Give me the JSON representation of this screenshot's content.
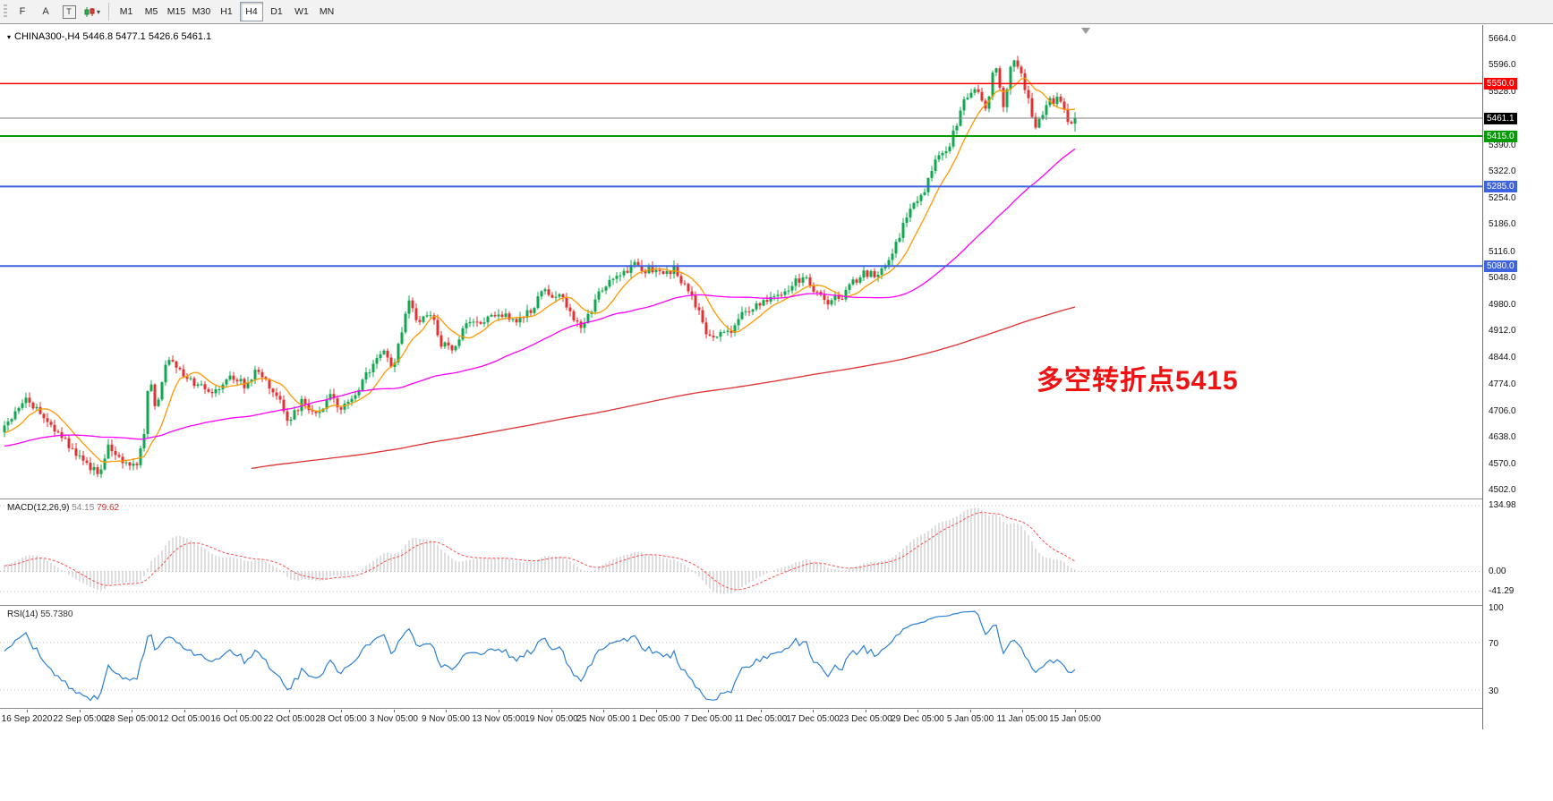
{
  "toolbar": {
    "icon_buttons": [
      {
        "name": "pointer-tool",
        "glyph": "F"
      },
      {
        "name": "text-label-tool",
        "glyph": "A"
      },
      {
        "name": "text-tool",
        "glyph": "T"
      }
    ],
    "chart_type_caret": "▾",
    "timeframes": [
      "M1",
      "M5",
      "M15",
      "M30",
      "H1",
      "H4",
      "D1",
      "W1",
      "MN"
    ],
    "active_timeframe": "H4"
  },
  "chart": {
    "symbol_marker": "▾",
    "symbol_info": "CHINA300-,H4 5446.8 5477.1 5426.6 5461.1",
    "annotation": "多空转折点5415",
    "colors": {
      "up": "#0fa84e",
      "down": "#e03232",
      "ma_fast": "#ff9900",
      "ma_mid": "#ff00ff",
      "ma_slow": "#e03030",
      "current": "#808080",
      "macd_hist": "#bdbdbd",
      "macd_signal": "#ff4d4d",
      "rsi_line": "#2a7fd4"
    },
    "levels": [
      {
        "label": "5550.0",
        "price": 5550.0,
        "color": "#ff0000",
        "width": 1.5
      },
      {
        "label": "5415.0",
        "price": 5415.0,
        "color": "#009b00",
        "width": 2
      },
      {
        "label": "5285.0",
        "price": 5285.0,
        "color": "#3e63de",
        "width": 2
      },
      {
        "label": "5080.0",
        "price": 5080.0,
        "color": "#3e63de",
        "width": 2
      }
    ],
    "price_marker": {
      "label": "5461.1",
      "price": 5461.1,
      "bg": "#000000"
    },
    "y_ticks": [
      "5664.0",
      "5596.0",
      "5528.0",
      "5390.0",
      "5322.0",
      "5254.0",
      "5186.0",
      "5116.0",
      "5048.0",
      "4980.0",
      "4912.0",
      "4844.0",
      "4774.0",
      "4706.0",
      "4638.0",
      "4570.0",
      "4502.0"
    ]
  },
  "macd": {
    "name": "MACD(12,26,9)",
    "value_main": "54.15",
    "value_signal": "79.62",
    "ticks": [
      {
        "label": "134.98",
        "value": 134.98
      },
      {
        "label": "0.00",
        "value": 0
      },
      {
        "label": "-41.29",
        "value": -41.29
      }
    ]
  },
  "rsi": {
    "name": "RSI(14)",
    "value": "55.7380",
    "ticks": [
      {
        "label": "100",
        "value": 100
      },
      {
        "label": "70",
        "value": 70
      },
      {
        "label": "30",
        "value": 30
      }
    ]
  },
  "time_axis": [
    "16 Sep 2020",
    "22 Sep 05:00",
    "28 Sep 05:00",
    "12 Oct 05:00",
    "16 Oct 05:00",
    "22 Oct 05:00",
    "28 Oct 05:00",
    "3 Nov 05:00",
    "9 Nov 05:00",
    "13 Nov 05:00",
    "19 Nov 05:00",
    "25 Nov 05:00",
    "1 Dec 05:00",
    "7 Dec 05:00",
    "11 Dec 05:00",
    "17 Dec 05:00",
    "23 Dec 05:00",
    "29 Dec 05:00",
    "5 Jan 05:00",
    "11 Jan 05:00",
    "15 Jan 05:00"
  ],
  "chart_data": {
    "type": "candlestick",
    "symbol": "CHINA300-",
    "timeframe": "H4",
    "price_axis_range": [
      4502.0,
      5664.0
    ],
    "current_bar": {
      "open": 5446.8,
      "high": 5477.1,
      "low": 5426.6,
      "close": 5461.1
    },
    "horizontal_levels": [
      5550.0,
      5415.0,
      5285.0,
      5080.0
    ],
    "visible_bars_rendered": 300,
    "close_path_anchors": [
      [
        0.0,
        4660
      ],
      [
        0.021,
        4745
      ],
      [
        0.033,
        4700
      ],
      [
        0.054,
        4645
      ],
      [
        0.075,
        4565
      ],
      [
        0.088,
        4548
      ],
      [
        0.098,
        4618
      ],
      [
        0.113,
        4575
      ],
      [
        0.123,
        4565
      ],
      [
        0.13,
        4640
      ],
      [
        0.135,
        4810
      ],
      [
        0.141,
        4700
      ],
      [
        0.152,
        4845
      ],
      [
        0.16,
        4822
      ],
      [
        0.175,
        4782
      ],
      [
        0.192,
        4752
      ],
      [
        0.208,
        4792
      ],
      [
        0.225,
        4775
      ],
      [
        0.235,
        4812
      ],
      [
        0.252,
        4762
      ],
      [
        0.265,
        4675
      ],
      [
        0.278,
        4730
      ],
      [
        0.292,
        4706
      ],
      [
        0.306,
        4746
      ],
      [
        0.315,
        4706
      ],
      [
        0.329,
        4760
      ],
      [
        0.342,
        4816
      ],
      [
        0.354,
        4872
      ],
      [
        0.363,
        4812
      ],
      [
        0.379,
        5005
      ],
      [
        0.385,
        4940
      ],
      [
        0.398,
        4956
      ],
      [
        0.408,
        4882
      ],
      [
        0.417,
        4862
      ],
      [
        0.429,
        4920
      ],
      [
        0.446,
        4936
      ],
      [
        0.463,
        4962
      ],
      [
        0.483,
        4936
      ],
      [
        0.504,
        5016
      ],
      [
        0.521,
        4996
      ],
      [
        0.538,
        4916
      ],
      [
        0.554,
        5000
      ],
      [
        0.567,
        5052
      ],
      [
        0.588,
        5082
      ],
      [
        0.608,
        5062
      ],
      [
        0.625,
        5072
      ],
      [
        0.642,
        5002
      ],
      [
        0.658,
        4896
      ],
      [
        0.675,
        4902
      ],
      [
        0.692,
        4962
      ],
      [
        0.708,
        4986
      ],
      [
        0.725,
        5012
      ],
      [
        0.746,
        5052
      ],
      [
        0.767,
        4986
      ],
      [
        0.783,
        5002
      ],
      [
        0.8,
        5062
      ],
      [
        0.817,
        5052
      ],
      [
        0.833,
        5142
      ],
      [
        0.846,
        5226
      ],
      [
        0.858,
        5262
      ],
      [
        0.871,
        5362
      ],
      [
        0.883,
        5396
      ],
      [
        0.896,
        5502
      ],
      [
        0.908,
        5542
      ],
      [
        0.917,
        5472
      ],
      [
        0.925,
        5602
      ],
      [
        0.933,
        5482
      ],
      [
        0.942,
        5630
      ],
      [
        0.954,
        5532
      ],
      [
        0.963,
        5432
      ],
      [
        0.975,
        5502
      ],
      [
        0.985,
        5512
      ],
      [
        0.994,
        5452
      ],
      [
        1.0,
        5461
      ]
    ],
    "indicators": [
      {
        "name": "MA fast",
        "color": "#ff9900"
      },
      {
        "name": "MA mid",
        "color": "#ff00ff"
      },
      {
        "name": "MA slow",
        "color": "#e03030"
      },
      {
        "name": "MACD(12,26,9)",
        "main": 54.15,
        "signal": 79.62,
        "axis_max": 134.98,
        "axis_min": -41.29
      },
      {
        "name": "RSI(14)",
        "value": 55.738,
        "levels": [
          30,
          70
        ]
      }
    ]
  }
}
